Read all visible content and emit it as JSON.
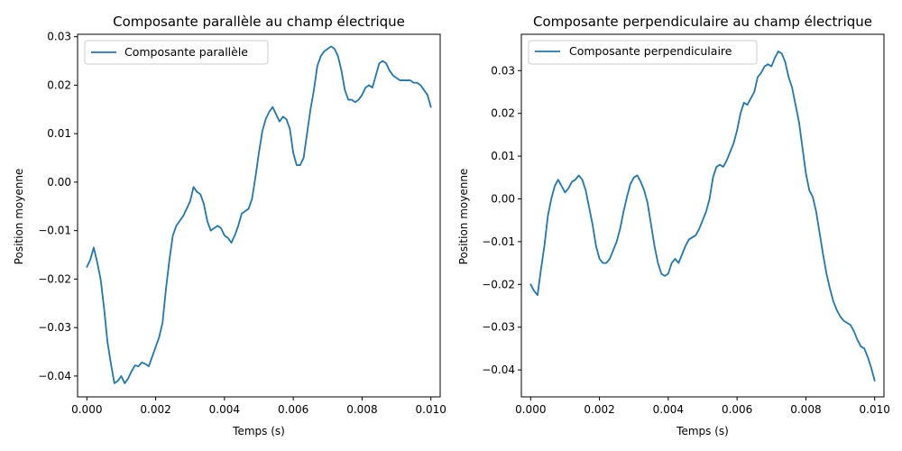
{
  "chart_data": [
    {
      "type": "line",
      "title": "Composante parallèle au champ électrique",
      "xlabel": "Temps (s)",
      "ylabel": "Position moyenne",
      "xlim": [
        -0.00027,
        0.01027
      ],
      "ylim": [
        -0.0443,
        0.0305
      ],
      "xticks": [
        0.0,
        0.002,
        0.004,
        0.006,
        0.008,
        0.01
      ],
      "xtick_labels": [
        "0.000",
        "0.002",
        "0.004",
        "0.006",
        "0.008",
        "0.010"
      ],
      "yticks": [
        -0.04,
        -0.03,
        -0.02,
        -0.01,
        0.0,
        0.01,
        0.02,
        0.03
      ],
      "ytick_labels": [
        "−0.04",
        "−0.03",
        "−0.02",
        "−0.01",
        "0.00",
        "0.01",
        "0.02",
        "0.03"
      ],
      "legend_position": "top-left",
      "color": "#1f77b4",
      "series": [
        {
          "name": "Composante parallèle",
          "x": [
            0.0,
            0.0001,
            0.0002,
            0.0003,
            0.0004,
            0.0005,
            0.0006,
            0.0007,
            0.0008,
            0.0009,
            0.001,
            0.0011,
            0.0012,
            0.0013,
            0.0014,
            0.0015,
            0.0016,
            0.0017,
            0.0018,
            0.0019,
            0.002,
            0.0021,
            0.0022,
            0.0023,
            0.0024,
            0.0025,
            0.0026,
            0.0027,
            0.0028,
            0.0029,
            0.003,
            0.0031,
            0.0032,
            0.0033,
            0.0034,
            0.0035,
            0.0036,
            0.0037,
            0.0038,
            0.0039,
            0.004,
            0.0041,
            0.0042,
            0.0043,
            0.0044,
            0.0045,
            0.0046,
            0.0047,
            0.0048,
            0.0049,
            0.005,
            0.0051,
            0.0052,
            0.0053,
            0.0054,
            0.0055,
            0.0056,
            0.0057,
            0.0058,
            0.0059,
            0.006,
            0.0061,
            0.0062,
            0.0063,
            0.0064,
            0.0065,
            0.0066,
            0.0067,
            0.0068,
            0.0069,
            0.007,
            0.0071,
            0.0072,
            0.0073,
            0.0074,
            0.0075,
            0.0076,
            0.0077,
            0.0078,
            0.0079,
            0.008,
            0.0081,
            0.0082,
            0.0083,
            0.0084,
            0.0085,
            0.0086,
            0.0087,
            0.0088,
            0.0089,
            0.009,
            0.0091,
            0.0092,
            0.0093,
            0.0094,
            0.0095,
            0.0096,
            0.0097,
            0.0098,
            0.0099,
            0.01
          ],
          "values": [
            -0.0175,
            -0.016,
            -0.0135,
            -0.0165,
            -0.02,
            -0.026,
            -0.033,
            -0.0375,
            -0.0415,
            -0.041,
            -0.04,
            -0.0415,
            -0.0405,
            -0.039,
            -0.0378,
            -0.038,
            -0.0372,
            -0.0375,
            -0.038,
            -0.036,
            -0.034,
            -0.032,
            -0.029,
            -0.022,
            -0.016,
            -0.011,
            -0.009,
            -0.008,
            -0.007,
            -0.0055,
            -0.004,
            -0.001,
            -0.002,
            -0.0025,
            -0.0045,
            -0.008,
            -0.01,
            -0.0095,
            -0.009,
            -0.0095,
            -0.011,
            -0.0115,
            -0.0125,
            -0.011,
            -0.009,
            -0.0065,
            -0.006,
            -0.0055,
            -0.0035,
            0.001,
            0.006,
            0.0105,
            0.013,
            0.0145,
            0.0155,
            0.014,
            0.0125,
            0.0135,
            0.013,
            0.011,
            0.006,
            0.0035,
            0.0035,
            0.005,
            0.01,
            0.015,
            0.019,
            0.024,
            0.026,
            0.027,
            0.0275,
            0.028,
            0.0275,
            0.026,
            0.023,
            0.019,
            0.017,
            0.017,
            0.0165,
            0.017,
            0.018,
            0.0195,
            0.02,
            0.0195,
            0.022,
            0.0245,
            0.025,
            0.0245,
            0.023,
            0.022,
            0.0215,
            0.021,
            0.021,
            0.021,
            0.021,
            0.0205,
            0.0205,
            0.02,
            0.019,
            0.018,
            0.0155
          ]
        }
      ]
    },
    {
      "type": "line",
      "title": "Composante perpendiculaire au champ électrique",
      "xlabel": "Temps (s)",
      "ylabel": "Position moyenne",
      "xlim": [
        -0.00027,
        0.01027
      ],
      "ylim": [
        -0.0463,
        0.0385
      ],
      "xticks": [
        0.0,
        0.002,
        0.004,
        0.006,
        0.008,
        0.01
      ],
      "xtick_labels": [
        "0.000",
        "0.002",
        "0.004",
        "0.006",
        "0.008",
        "0.010"
      ],
      "yticks": [
        -0.04,
        -0.03,
        -0.02,
        -0.01,
        0.0,
        0.01,
        0.02,
        0.03
      ],
      "ytick_labels": [
        "−0.04",
        "−0.03",
        "−0.02",
        "−0.01",
        "0.00",
        "0.01",
        "0.02",
        "0.03"
      ],
      "legend_position": "top-left",
      "color": "#1f77b4",
      "series": [
        {
          "name": "Composante perpendiculaire",
          "x": [
            0.0,
            0.0001,
            0.0002,
            0.0003,
            0.0004,
            0.0005,
            0.0006,
            0.0007,
            0.0008,
            0.0009,
            0.001,
            0.0011,
            0.0012,
            0.0013,
            0.0014,
            0.0015,
            0.0016,
            0.0017,
            0.0018,
            0.0019,
            0.002,
            0.0021,
            0.0022,
            0.0023,
            0.0024,
            0.0025,
            0.0026,
            0.0027,
            0.0028,
            0.0029,
            0.003,
            0.0031,
            0.0032,
            0.0033,
            0.0034,
            0.0035,
            0.0036,
            0.0037,
            0.0038,
            0.0039,
            0.004,
            0.0041,
            0.0042,
            0.0043,
            0.0044,
            0.0045,
            0.0046,
            0.0047,
            0.0048,
            0.0049,
            0.005,
            0.0051,
            0.0052,
            0.0053,
            0.0054,
            0.0055,
            0.0056,
            0.0057,
            0.0058,
            0.0059,
            0.006,
            0.0061,
            0.0062,
            0.0063,
            0.0064,
            0.0065,
            0.0066,
            0.0067,
            0.0068,
            0.0069,
            0.007,
            0.0071,
            0.0072,
            0.0073,
            0.0074,
            0.0075,
            0.0076,
            0.0077,
            0.0078,
            0.0079,
            0.008,
            0.0081,
            0.0082,
            0.0083,
            0.0084,
            0.0085,
            0.0086,
            0.0087,
            0.0088,
            0.0089,
            0.009,
            0.0091,
            0.0092,
            0.0093,
            0.0094,
            0.0095,
            0.0096,
            0.0097,
            0.0098,
            0.0099,
            0.01
          ],
          "values": [
            -0.02,
            -0.0215,
            -0.0225,
            -0.0165,
            -0.011,
            -0.004,
            0.0,
            0.003,
            0.0045,
            0.003,
            0.0015,
            0.0025,
            0.004,
            0.0045,
            0.0055,
            0.0045,
            0.002,
            -0.002,
            -0.006,
            -0.011,
            -0.014,
            -0.015,
            -0.015,
            -0.014,
            -0.012,
            -0.01,
            -0.007,
            -0.003,
            0.0005,
            0.0035,
            0.005,
            0.0055,
            0.004,
            0.002,
            -0.001,
            -0.006,
            -0.011,
            -0.015,
            -0.0175,
            -0.018,
            -0.0175,
            -0.015,
            -0.014,
            -0.015,
            -0.013,
            -0.011,
            -0.0095,
            -0.009,
            -0.0085,
            -0.007,
            -0.005,
            -0.003,
            0.0,
            0.005,
            0.0075,
            0.008,
            0.0075,
            0.009,
            0.011,
            0.013,
            0.016,
            0.02,
            0.0225,
            0.022,
            0.0235,
            0.025,
            0.0285,
            0.0295,
            0.031,
            0.0315,
            0.031,
            0.033,
            0.0345,
            0.034,
            0.032,
            0.0285,
            0.026,
            0.022,
            0.018,
            0.012,
            0.006,
            0.002,
            0.0005,
            -0.003,
            -0.008,
            -0.013,
            -0.0175,
            -0.021,
            -0.024,
            -0.026,
            -0.0275,
            -0.0285,
            -0.029,
            -0.0295,
            -0.031,
            -0.033,
            -0.0345,
            -0.035,
            -0.037,
            -0.0395,
            -0.0425
          ]
        }
      ]
    }
  ]
}
